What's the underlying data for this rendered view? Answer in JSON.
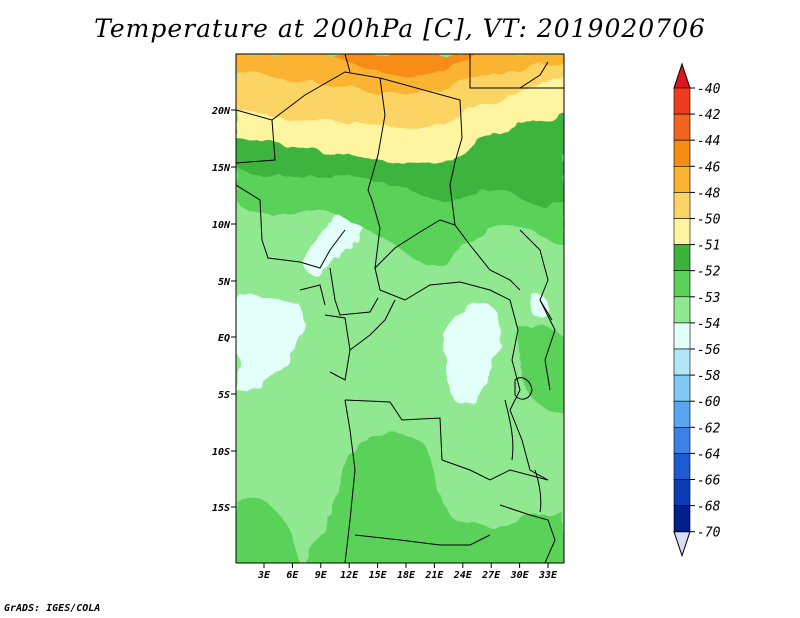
{
  "title": "Temperature at 200hPa [C], VT: 2019020706",
  "credit": "GrADS: IGES/COLA",
  "map": {
    "lat_labels": [
      "20N",
      "15N",
      "10N",
      "5N",
      "EQ",
      "5S",
      "10S",
      "15S"
    ],
    "lon_labels": [
      "3E",
      "6E",
      "9E",
      "12E",
      "15E",
      "18E",
      "21E",
      "24E",
      "27E",
      "30E",
      "33E"
    ]
  },
  "colorbar": {
    "labels": [
      "-40",
      "-42",
      "-44",
      "-46",
      "-48",
      "-50",
      "-51",
      "-52",
      "-53",
      "-54",
      "-56",
      "-58",
      "-60",
      "-62",
      "-64",
      "-66",
      "-68",
      "-70"
    ],
    "top_color": "#e0141e",
    "bottom_color": "#dcdcf5",
    "bands": [
      "#f03c1e",
      "#f0641e",
      "#f78c14",
      "#fab432",
      "#fcd464",
      "#fff5a0",
      "#3cb43c",
      "#5ad25a",
      "#90e890",
      "#e2fffa",
      "#b4e6fa",
      "#82c8f5",
      "#5aa5f0",
      "#3c82e6",
      "#1e5ad2",
      "#0a3cb4",
      "#001e8c"
    ]
  },
  "colors": {
    "c_-48": "#fab432",
    "c_-50": "#fcd464",
    "c_-51": "#fff5a0",
    "c_-52": "#3cb43c",
    "c_-53": "#5ad25a",
    "c_-54": "#90e890",
    "c_-56": "#e2fffa",
    "c_-46": "#f78c14",
    "border": "#000000"
  }
}
